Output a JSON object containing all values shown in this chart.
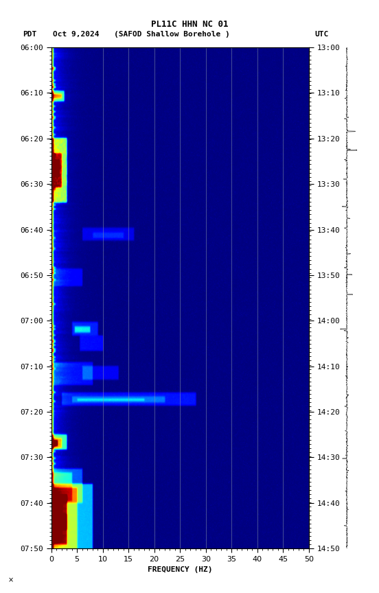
{
  "title_line1": "PL11C HHN NC 01",
  "xlabel": "FREQUENCY (HZ)",
  "freq_min": 0,
  "freq_max": 50,
  "freq_ticks": [
    0,
    5,
    10,
    15,
    20,
    25,
    30,
    35,
    40,
    45,
    50
  ],
  "time_left_labels": [
    "06:00",
    "06:10",
    "06:20",
    "06:30",
    "06:40",
    "06:50",
    "07:00",
    "07:10",
    "07:20",
    "07:30",
    "07:40",
    "07:50"
  ],
  "time_right_labels": [
    "13:00",
    "13:10",
    "13:20",
    "13:30",
    "13:40",
    "13:50",
    "14:00",
    "14:10",
    "14:20",
    "14:30",
    "14:40",
    "14:50"
  ],
  "n_time": 660,
  "n_freq": 500,
  "colormap": "jet",
  "vline_color": "#8899aa",
  "vline_freqs": [
    10,
    15,
    20,
    25,
    30,
    35,
    40,
    45
  ],
  "fig_width": 5.52,
  "fig_height": 8.64,
  "dpi": 100
}
